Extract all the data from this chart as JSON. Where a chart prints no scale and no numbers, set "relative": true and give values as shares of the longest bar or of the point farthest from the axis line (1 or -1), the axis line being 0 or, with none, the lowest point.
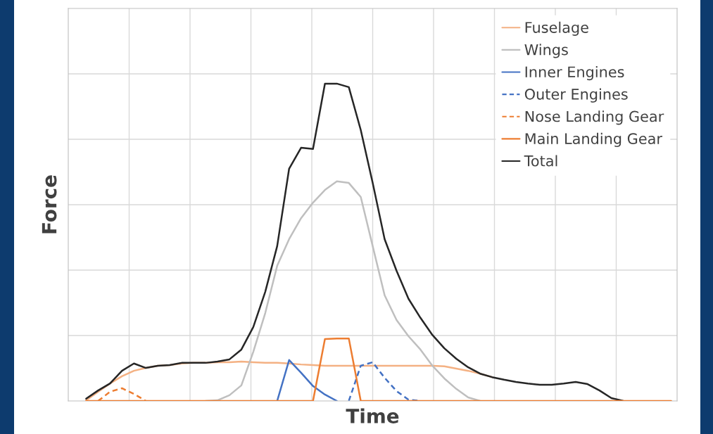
{
  "chart_data": {
    "type": "line",
    "xlabel": "Time",
    "ylabel": "Force",
    "relative": true,
    "grid": true,
    "legend": "top right",
    "marker": "none",
    "categories": [
      null,
      null,
      null,
      null,
      null,
      null,
      null,
      null,
      null,
      null,
      null,
      null,
      null,
      null,
      null,
      null,
      null,
      null,
      null,
      null,
      null,
      null,
      null,
      null,
      null,
      null,
      null,
      null,
      null,
      null,
      null,
      null,
      null,
      null,
      null,
      null,
      null,
      null,
      null,
      null,
      null,
      null,
      null,
      null,
      null,
      null,
      null,
      null,
      null,
      null,
      null
    ],
    "series": [
      {
        "name": "Fuselage",
        "color": "#f4b183",
        "line_style": "solid",
        "values": [
          null,
          0.002,
          0.029,
          0.055,
          0.078,
          0.095,
          0.104,
          0.111,
          0.113,
          0.118,
          0.12,
          0.12,
          0.122,
          0.122,
          0.124,
          0.122,
          0.12,
          0.12,
          0.118,
          0.115,
          0.113,
          0.111,
          0.111,
          0.111,
          0.111,
          0.111,
          0.111,
          0.111,
          0.111,
          0.111,
          0.111,
          0.109,
          0.102,
          0.095,
          0.086,
          0.075,
          null,
          null,
          null,
          null,
          null,
          null,
          null,
          null,
          null,
          null,
          null,
          null,
          null,
          null,
          null
        ]
      },
      {
        "name": "Wings",
        "color": "#bfbfbf",
        "line_style": "solid",
        "values": [
          null,
          null,
          null,
          null,
          null,
          null,
          null,
          null,
          null,
          null,
          null,
          0,
          0.002,
          0.018,
          0.049,
          0.155,
          0.277,
          0.426,
          0.51,
          0.576,
          0.625,
          0.665,
          0.692,
          0.687,
          0.643,
          0.488,
          0.333,
          0.255,
          0.204,
          0.162,
          0.111,
          0.071,
          0.038,
          0.011,
          0,
          null,
          null,
          null,
          null,
          null,
          null,
          null,
          null,
          null,
          null,
          null,
          null,
          null,
          null,
          null,
          null
        ]
      },
      {
        "name": "Inner Engines",
        "color": "#4472c4",
        "line_style": "solid",
        "values": [
          null,
          null,
          null,
          null,
          null,
          null,
          null,
          null,
          null,
          null,
          null,
          null,
          null,
          null,
          null,
          null,
          null,
          0,
          0.129,
          0.089,
          0.047,
          0.02,
          0,
          null,
          null,
          null,
          null,
          null,
          null,
          null,
          null,
          null,
          null,
          null,
          null,
          null,
          null,
          null,
          null,
          null,
          null,
          null,
          null,
          null,
          null,
          null,
          null,
          null,
          null,
          null,
          null
        ]
      },
      {
        "name": "Outer Engines",
        "color": "#4472c4",
        "line_style": "dashed",
        "values": [
          null,
          null,
          null,
          null,
          null,
          null,
          null,
          null,
          null,
          null,
          null,
          null,
          null,
          null,
          null,
          null,
          null,
          null,
          null,
          null,
          null,
          null,
          null,
          0,
          0.111,
          0.122,
          0.073,
          0.031,
          0.004,
          0,
          null,
          null,
          null,
          null,
          null,
          null,
          null,
          null,
          null,
          null,
          null,
          null,
          null,
          null,
          null,
          null,
          null,
          null,
          null,
          null,
          null
        ]
      },
      {
        "name": "Nose Landing Gear",
        "color": "#ed7d31",
        "line_style": "dashed",
        "values": [
          null,
          null,
          0,
          0.029,
          0.04,
          0.022,
          0,
          null,
          null,
          null,
          null,
          null,
          null,
          null,
          null,
          null,
          null,
          null,
          null,
          null,
          null,
          null,
          null,
          null,
          null,
          null,
          null,
          null,
          null,
          null,
          null,
          null,
          null,
          null,
          null,
          null,
          null,
          null,
          null,
          null,
          null,
          null,
          null,
          null,
          null,
          null,
          null,
          null,
          null,
          null,
          null
        ]
      },
      {
        "name": "Main Landing Gear",
        "color": "#ed7d31",
        "line_style": "solid",
        "values": [
          null,
          0,
          0,
          0,
          0,
          0,
          0,
          0,
          0,
          0,
          0,
          0,
          0,
          0,
          0,
          0,
          0,
          0,
          0,
          0,
          0,
          0.195,
          0.197,
          0.197,
          0,
          0,
          0,
          0,
          0,
          0,
          0,
          0,
          0,
          0,
          0,
          0,
          0,
          0,
          0,
          0,
          0,
          0,
          0,
          0,
          0,
          0,
          0,
          0,
          0,
          0,
          0
        ]
      },
      {
        "name": "Total",
        "color": "#262626",
        "line_style": "solid",
        "values": [
          null,
          0.007,
          0.033,
          0.055,
          0.095,
          0.118,
          0.104,
          0.111,
          0.113,
          0.12,
          0.12,
          0.12,
          0.124,
          0.131,
          0.162,
          0.233,
          0.344,
          0.488,
          0.732,
          0.798,
          0.794,
          1.0,
          1.0,
          0.989,
          0.854,
          0.687,
          0.51,
          0.41,
          0.322,
          0.262,
          0.208,
          0.166,
          0.133,
          0.106,
          0.086,
          0.075,
          0.067,
          0.06,
          0.055,
          0.051,
          0.051,
          0.055,
          0.06,
          0.053,
          0.033,
          0.009,
          0,
          null,
          null,
          null,
          null
        ]
      }
    ]
  }
}
